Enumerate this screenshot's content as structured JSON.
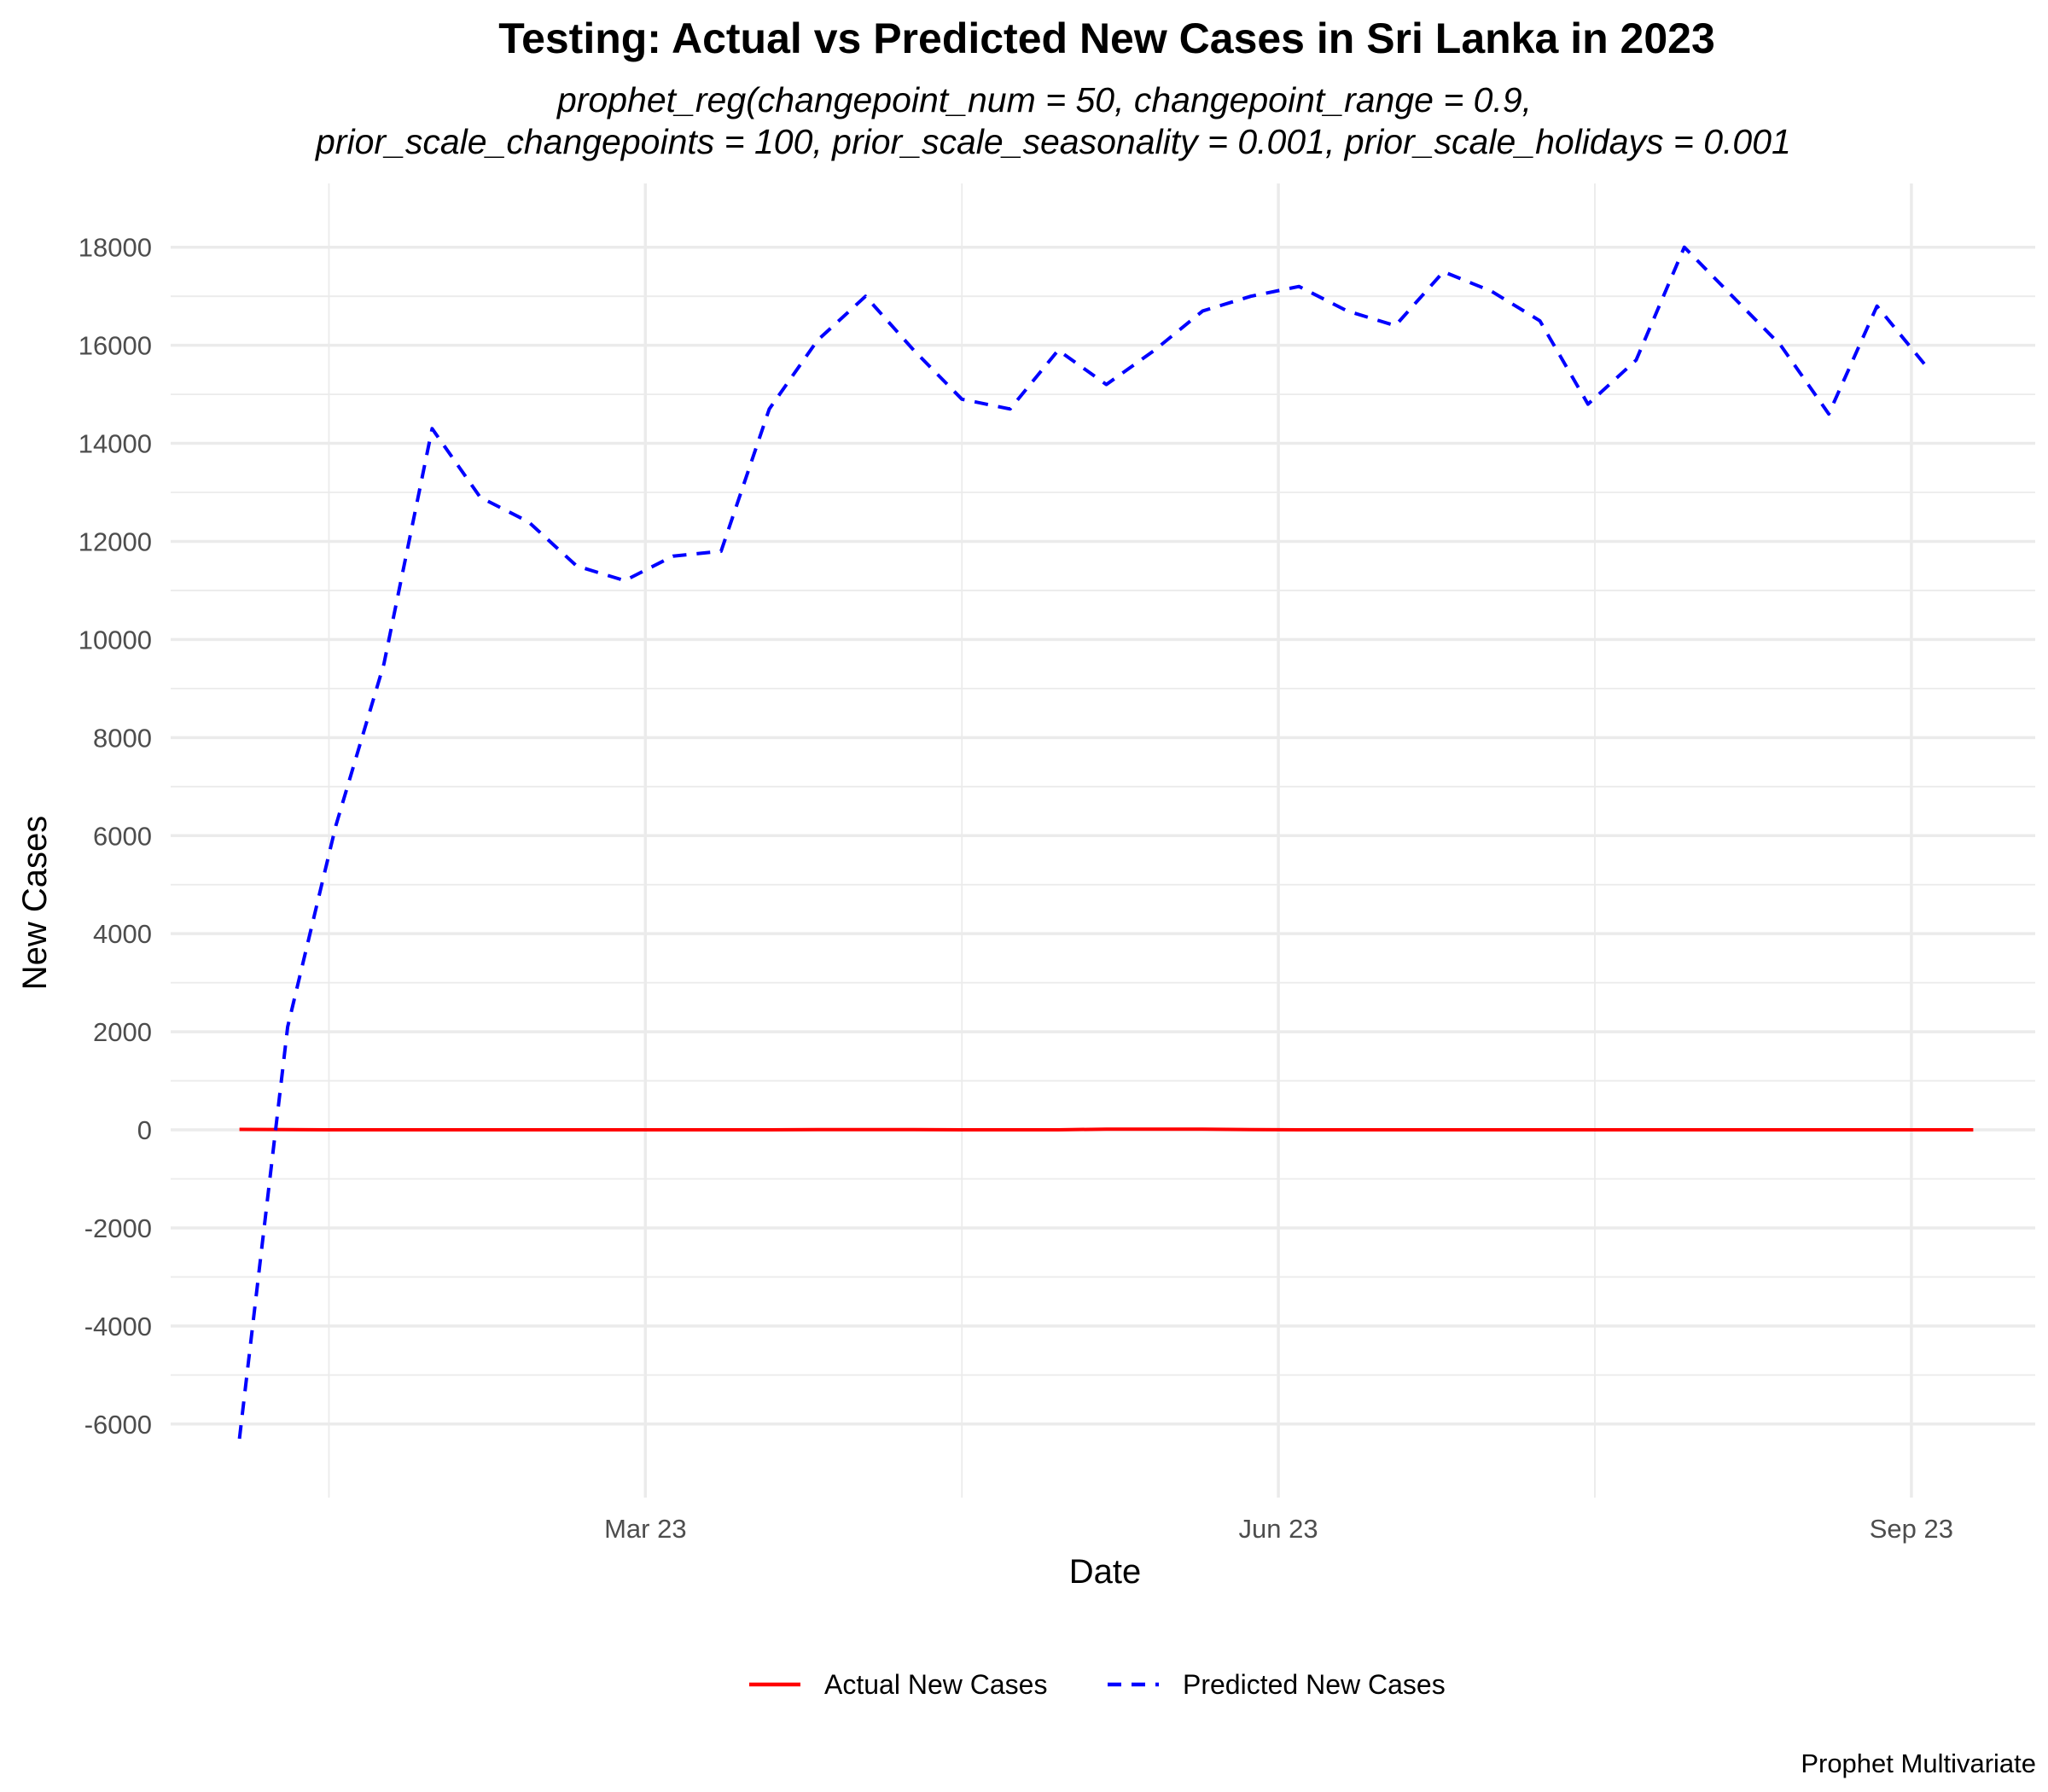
{
  "chart_data": {
    "type": "line",
    "title": "Testing: Actual vs Predicted New Cases in Sri Lanka in 2023",
    "subtitle_lines": [
      "prophet_reg(changepoint_num = 50, changepoint_range = 0.9,",
      "prior_scale_changepoints = 100, prior_scale_seasonality = 0.001, prior_scale_holidays = 0.001"
    ],
    "caption": "Prophet Multivariate",
    "xlabel": "Date",
    "ylabel": "New Cases",
    "x_ticks": [
      {
        "label": "Mar 23",
        "date": "2023-03-01"
      },
      {
        "label": "Jun 23",
        "date": "2023-06-01"
      },
      {
        "label": "Sep 23",
        "date": "2023-09-01"
      }
    ],
    "y_ticks": [
      -6000,
      -4000,
      -2000,
      0,
      2000,
      4000,
      6000,
      8000,
      10000,
      12000,
      14000,
      16000,
      18000
    ],
    "xlim": [
      "2022-12-22",
      "2023-09-19"
    ],
    "ylim": [
      -7500,
      19300
    ],
    "grid": true,
    "legend_position": "bottom",
    "series": [
      {
        "name": "Actual New Cases",
        "color": "#ff0000",
        "line_style": "solid",
        "points": [
          {
            "x": "2023-01-01",
            "y": 10
          },
          {
            "x": "2023-01-08",
            "y": 4
          },
          {
            "x": "2023-01-15",
            "y": 0
          },
          {
            "x": "2023-01-22",
            "y": 0
          },
          {
            "x": "2023-01-29",
            "y": 0
          },
          {
            "x": "2023-02-05",
            "y": 0
          },
          {
            "x": "2023-02-12",
            "y": 0
          },
          {
            "x": "2023-02-19",
            "y": 0
          },
          {
            "x": "2023-02-26",
            "y": 0
          },
          {
            "x": "2023-03-05",
            "y": 0
          },
          {
            "x": "2023-03-12",
            "y": 0
          },
          {
            "x": "2023-03-19",
            "y": 0
          },
          {
            "x": "2023-03-26",
            "y": 4
          },
          {
            "x": "2023-04-02",
            "y": 4
          },
          {
            "x": "2023-04-09",
            "y": 4
          },
          {
            "x": "2023-04-16",
            "y": 0
          },
          {
            "x": "2023-04-23",
            "y": 0
          },
          {
            "x": "2023-04-30",
            "y": 0
          },
          {
            "x": "2023-05-07",
            "y": 15
          },
          {
            "x": "2023-05-14",
            "y": 15
          },
          {
            "x": "2023-05-21",
            "y": 15
          },
          {
            "x": "2023-05-28",
            "y": 4
          },
          {
            "x": "2023-06-04",
            "y": 0
          },
          {
            "x": "2023-06-11",
            "y": 0
          },
          {
            "x": "2023-06-18",
            "y": 0
          },
          {
            "x": "2023-06-25",
            "y": 0
          },
          {
            "x": "2023-07-02",
            "y": 0
          },
          {
            "x": "2023-07-09",
            "y": 0
          },
          {
            "x": "2023-07-16",
            "y": 0
          },
          {
            "x": "2023-07-23",
            "y": 0
          },
          {
            "x": "2023-07-30",
            "y": 0
          },
          {
            "x": "2023-08-06",
            "y": 0
          },
          {
            "x": "2023-08-13",
            "y": 0
          },
          {
            "x": "2023-08-20",
            "y": 0
          },
          {
            "x": "2023-08-27",
            "y": 0
          },
          {
            "x": "2023-09-03",
            "y": 0
          },
          {
            "x": "2023-09-10",
            "y": 0
          }
        ]
      },
      {
        "name": "Predicted New Cases",
        "color": "#0000ff",
        "line_style": "dashed",
        "points": [
          {
            "x": "2023-01-01",
            "y": -6300
          },
          {
            "x": "2023-01-08",
            "y": 2100
          },
          {
            "x": "2023-01-15",
            "y": 6200
          },
          {
            "x": "2023-01-22",
            "y": 9500
          },
          {
            "x": "2023-01-29",
            "y": 14300
          },
          {
            "x": "2023-02-05",
            "y": 12900
          },
          {
            "x": "2023-02-12",
            "y": 12400
          },
          {
            "x": "2023-02-19",
            "y": 11500
          },
          {
            "x": "2023-02-26",
            "y": 11200
          },
          {
            "x": "2023-03-05",
            "y": 11700
          },
          {
            "x": "2023-03-12",
            "y": 11800
          },
          {
            "x": "2023-03-19",
            "y": 14700
          },
          {
            "x": "2023-03-26",
            "y": 16100
          },
          {
            "x": "2023-04-02",
            "y": 17000
          },
          {
            "x": "2023-04-09",
            "y": 15900
          },
          {
            "x": "2023-04-16",
            "y": 14900
          },
          {
            "x": "2023-04-23",
            "y": 14700
          },
          {
            "x": "2023-04-30",
            "y": 15900
          },
          {
            "x": "2023-05-07",
            "y": 15200
          },
          {
            "x": "2023-05-14",
            "y": 15900
          },
          {
            "x": "2023-05-21",
            "y": 16700
          },
          {
            "x": "2023-05-28",
            "y": 17000
          },
          {
            "x": "2023-06-04",
            "y": 17200
          },
          {
            "x": "2023-06-11",
            "y": 16700
          },
          {
            "x": "2023-06-18",
            "y": 16400
          },
          {
            "x": "2023-06-25",
            "y": 17500
          },
          {
            "x": "2023-07-02",
            "y": 17100
          },
          {
            "x": "2023-07-09",
            "y": 16500
          },
          {
            "x": "2023-07-16",
            "y": 14800
          },
          {
            "x": "2023-07-23",
            "y": 15700
          },
          {
            "x": "2023-07-30",
            "y": 18000
          },
          {
            "x": "2023-08-06",
            "y": 17000
          },
          {
            "x": "2023-08-13",
            "y": 16000
          },
          {
            "x": "2023-08-20",
            "y": 14600
          },
          {
            "x": "2023-08-27",
            "y": 16800
          },
          {
            "x": "2023-09-03",
            "y": 15600
          }
        ]
      }
    ]
  }
}
